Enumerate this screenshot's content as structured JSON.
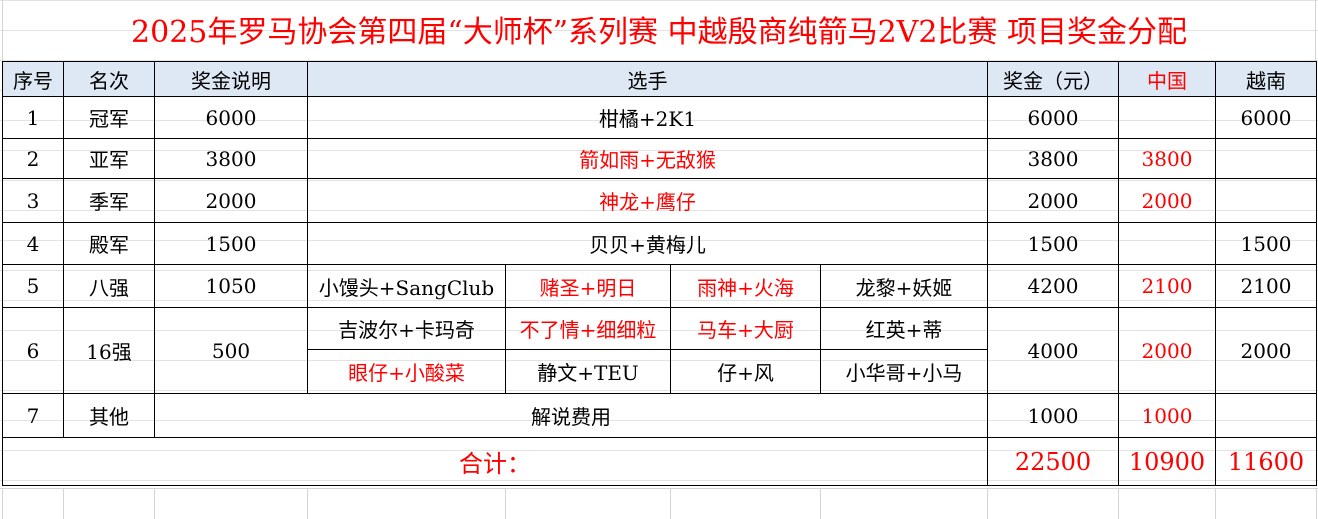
{
  "title": "2025年罗马协会第四届“大师杯”系列赛 中越殷商纯箭马2V2比赛 项目奖金分配",
  "headers": {
    "no": "序号",
    "rank": "名次",
    "desc": "奖金说明",
    "players": "选手",
    "prize": "奖金（元）",
    "china": "中国",
    "vietnam": "越南"
  },
  "rows": [
    {
      "no": "1",
      "rank": "冠军",
      "desc": "6000",
      "players": "柑橘+2K1",
      "prize": "6000",
      "china": "",
      "vietnam": "6000"
    },
    {
      "no": "2",
      "rank": "亚军",
      "desc": "3800",
      "players": "箭如雨+无敌猴",
      "prize": "3800",
      "china": "3800",
      "vietnam": ""
    },
    {
      "no": "3",
      "rank": "季军",
      "desc": "2000",
      "players": "神龙+鹰仔",
      "prize": "2000",
      "china": "2000",
      "vietnam": ""
    },
    {
      "no": "4",
      "rank": "殿军",
      "desc": "1500",
      "players": "贝贝+黄梅儿",
      "prize": "1500",
      "china": "",
      "vietnam": "1500"
    },
    {
      "no": "5",
      "rank": "八强",
      "desc": "1050",
      "teams": [
        "小馒头+SangClub",
        "赌圣+明日",
        "雨神+火海",
        "龙黎+妖姬"
      ],
      "prize": "4200",
      "china": "2100",
      "vietnam": "2100"
    },
    {
      "no": "6",
      "rank": "16强",
      "desc": "500",
      "teams": [
        "吉波尔+卡玛奇",
        "不了情+细细粒",
        "马车+大厨",
        "红英+蒂",
        "眼仔+小酸菜",
        "静文+TEU",
        "仔+风",
        "小华哥+小马"
      ],
      "prize": "4000",
      "china": "2000",
      "vietnam": "2000"
    },
    {
      "no": "7",
      "rank": "其他",
      "desc": "解说费用",
      "prize": "1000",
      "china": "1000",
      "vietnam": ""
    }
  ],
  "total": {
    "label": "合计：",
    "prize": "22500",
    "china": "10900",
    "vietnam": "11600"
  },
  "colors": {
    "title": "#ff0000",
    "china_team": "#ff0000",
    "header_fill": "#dde8f4"
  }
}
